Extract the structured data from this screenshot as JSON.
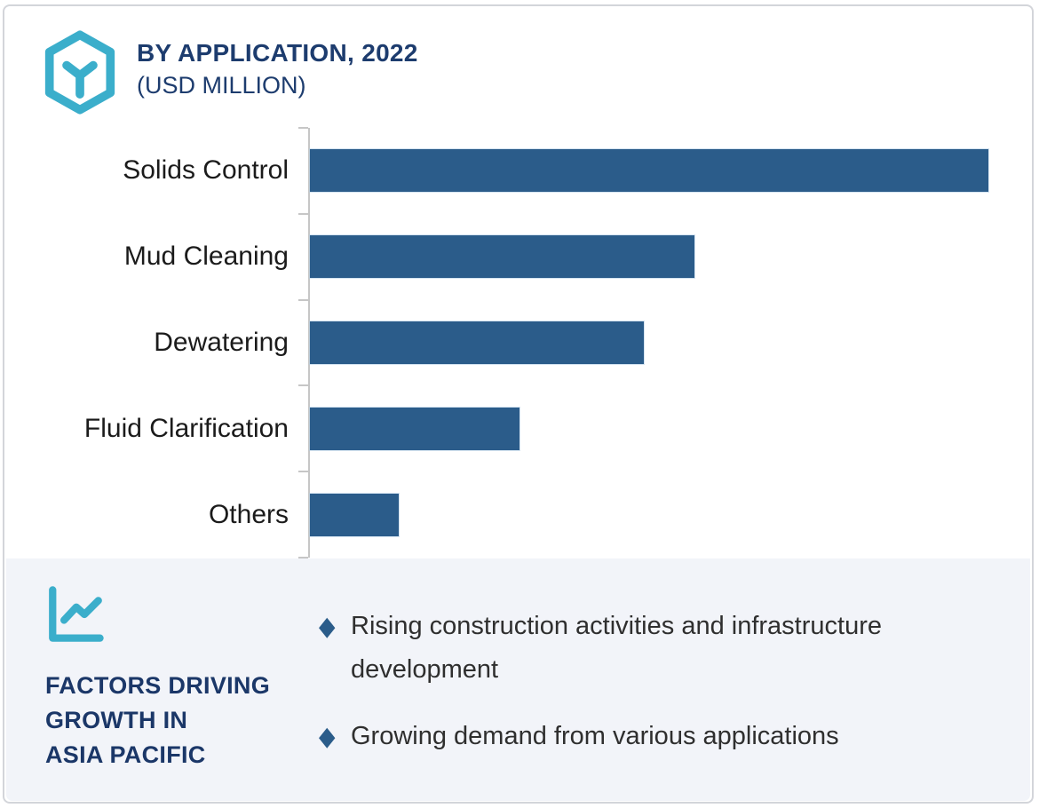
{
  "header": {
    "title": "BY APPLICATION, 2022",
    "subtitle": "(USD MILLION)"
  },
  "chart_data": {
    "type": "bar",
    "orientation": "horizontal",
    "title": "BY APPLICATION, 2022 (USD MILLION)",
    "categories": [
      "Solids Control",
      "Mud Cleaning",
      "Dewatering",
      "Fluid Clarification",
      "Others"
    ],
    "values": [
      100,
      56.7,
      49.2,
      30.9,
      13.1
    ],
    "value_scale_note": "relative units, longest bar = 100; no numeric axis labels are rendered in the figure",
    "xlabel": "",
    "ylabel": "",
    "xlim": [
      0,
      102.4
    ],
    "grid": false,
    "legend": false,
    "bar_color": "#2B5C8A",
    "axis_color": "#C6C6C6"
  },
  "factors": {
    "heading_lines": [
      "FACTORS DRIVING",
      "GROWTH IN",
      "ASIA PACIFIC"
    ],
    "bullet_marker": "◆",
    "bullets": [
      "Rising construction activities and infrastructure development",
      "Growing demand from various applications"
    ]
  },
  "colors": {
    "navy": "#1D3C6E",
    "bar_blue": "#2B5C8A",
    "teal": "#3BAECB",
    "panel_bg": "#F2F4F9",
    "frame_border": "#D3D5DA"
  },
  "icons": {
    "logo": "hexagon-y-logo-icon",
    "factors": "line-chart-icon",
    "bullet": "diamond-bullet-icon"
  }
}
